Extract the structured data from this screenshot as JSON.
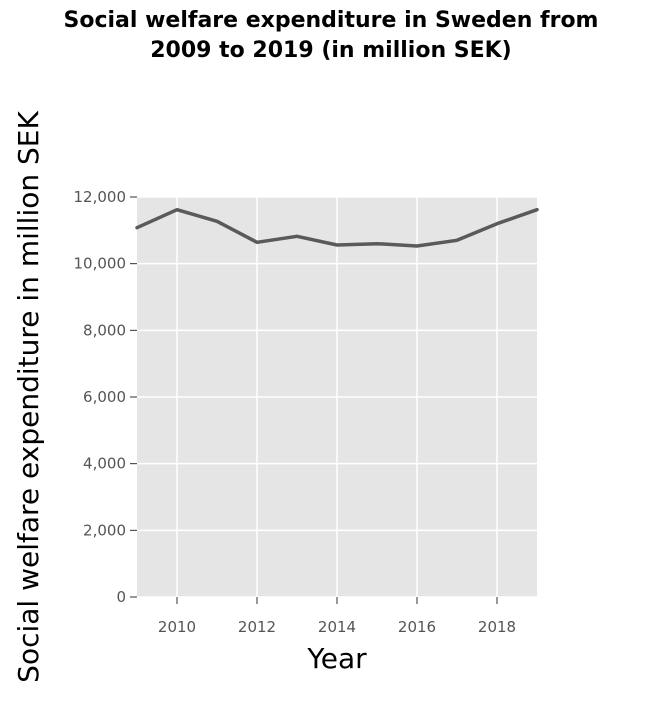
{
  "chart_data": {
    "type": "line",
    "title": "Social welfare expenditure in Sweden from\n2009 to 2019 (in million SEK)",
    "xlabel": "Year",
    "ylabel": "Social welfare expenditure in million SEK",
    "x": [
      2009,
      2010,
      2011,
      2012,
      2013,
      2014,
      2015,
      2016,
      2017,
      2018,
      2019
    ],
    "values": [
      11080,
      11620,
      11270,
      10640,
      10820,
      10560,
      10600,
      10530,
      10700,
      11200,
      11620
    ],
    "xlim": [
      2009,
      2019
    ],
    "ylim": [
      0,
      12000
    ],
    "x_ticks": [
      2010,
      2012,
      2014,
      2016,
      2018
    ],
    "x_tick_labels": [
      "2010",
      "2012",
      "2014",
      "2016",
      "2018"
    ],
    "y_ticks": [
      0,
      2000,
      4000,
      6000,
      8000,
      10000,
      12000
    ],
    "y_tick_labels": [
      "0",
      "2,000",
      "4,000",
      "6,000",
      "8,000",
      "10,000",
      "12,000"
    ],
    "grid": true,
    "colors": {
      "line": "#5a5a5a",
      "plot_background": "#e5e5e5",
      "grid": "#ffffff"
    }
  }
}
